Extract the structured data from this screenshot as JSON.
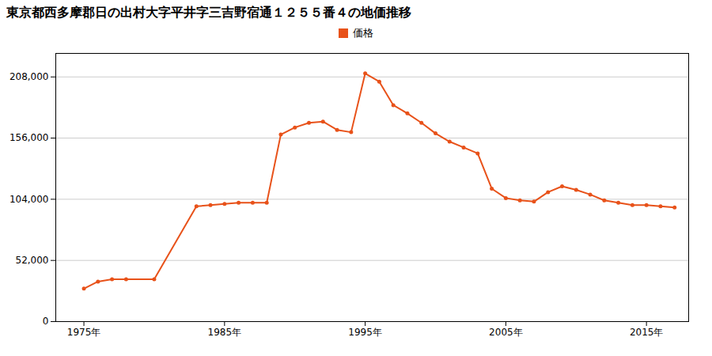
{
  "chart_data": {
    "type": "line",
    "title": "東京都西多摩郡日の出村大字平井字三吉野宿通１２５５番４の地価推移",
    "x": [
      1975,
      1976,
      1977,
      1978,
      1980,
      1983,
      1984,
      1985,
      1986,
      1987,
      1988,
      1989,
      1990,
      1991,
      1992,
      1993,
      1994,
      1995,
      1996,
      1997,
      1998,
      1999,
      2000,
      2001,
      2002,
      2003,
      2004,
      2005,
      2006,
      2007,
      2008,
      2009,
      2010,
      2011,
      2012,
      2013,
      2014,
      2015,
      2016,
      2017
    ],
    "series": [
      {
        "name": "価格",
        "color": "#e8521a",
        "marker": "circle",
        "values": [
          28000,
          34000,
          36000,
          36000,
          36000,
          98000,
          99000,
          100000,
          101000,
          101000,
          101000,
          159000,
          165000,
          169000,
          170000,
          163000,
          161000,
          211000,
          204000,
          184000,
          177000,
          169000,
          160000,
          153000,
          148000,
          143000,
          113000,
          105000,
          103000,
          102000,
          110000,
          115000,
          112000,
          108000,
          103000,
          101000,
          99000,
          99000,
          98000,
          97000
        ]
      }
    ],
    "xlim": [
      1973,
      2018
    ],
    "xticks": [
      {
        "value": 1975,
        "label": "1975年"
      },
      {
        "value": 1985,
        "label": "1985年"
      },
      {
        "value": 1995,
        "label": "1995年"
      },
      {
        "value": 2005,
        "label": "2005年"
      },
      {
        "value": 2015,
        "label": "2015年"
      }
    ],
    "ylim": [
      0,
      228000
    ],
    "yticks": [
      0,
      {
        "value": 52000,
        "label": "52,000"
      },
      {
        "value": 104000,
        "label": "104,000"
      },
      {
        "value": 156000,
        "label": "156,000"
      },
      {
        "value": 208000,
        "label": "208,000"
      }
    ],
    "grid": "y",
    "legend": "top"
  }
}
